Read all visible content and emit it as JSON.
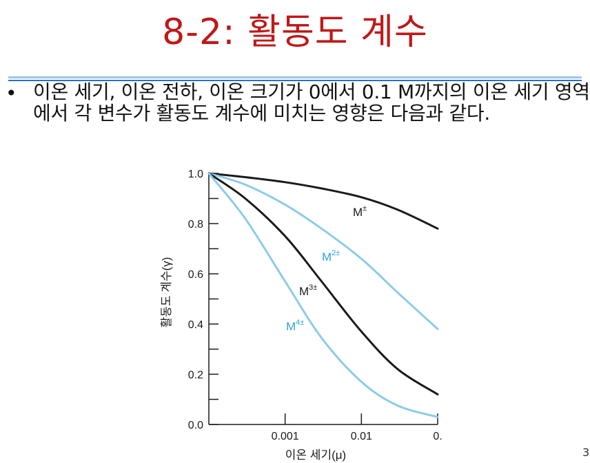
{
  "slide": {
    "title": "8-2: 활동도 계수",
    "bullet_text": "이온 세기, 이온 전하, 이온 크기가 0에서 0.1 M까지의 이온 세기 영역에서 각 변수가 활동도 계수에 미치는 영향은 다음과 같다.",
    "page_number": "3"
  },
  "colors": {
    "title": "#c01818",
    "rule_light": "#9fc3ea",
    "rule_dark": "#2a6fc6",
    "black_curve": "#1a1a1a",
    "blue_curve": "#8ccbea",
    "blue_label": "#2aa3df"
  },
  "chart_data": {
    "type": "line",
    "xlabel": "이온 세기(μ)",
    "ylabel": "활동도 계수(γ)",
    "x_scale": "log",
    "x_ticks": [
      {
        "value": 0.001,
        "label": "0.001"
      },
      {
        "value": 0.01,
        "label": "0.01"
      },
      {
        "value": 0.1,
        "label": "0."
      }
    ],
    "y_ticks": [
      {
        "value": 1.0,
        "label": "1.0"
      },
      {
        "value": 0.8,
        "label": "0.8"
      },
      {
        "value": 0.6,
        "label": "0.6"
      },
      {
        "value": 0.4,
        "label": "0.4"
      },
      {
        "value": 0.2,
        "label": "0.2"
      },
      {
        "value": 0.0,
        "label": "0.0"
      }
    ],
    "xlim": [
      0.0001,
      0.1
    ],
    "ylim": [
      0,
      1.0
    ],
    "series": [
      {
        "name": "M±",
        "label_base": "M",
        "label_sup": "±",
        "color": "#1a1a1a",
        "x": [
          0.0001,
          0.0003,
          0.001,
          0.003,
          0.01,
          0.03,
          0.1
        ],
        "y": [
          1.0,
          0.985,
          0.965,
          0.94,
          0.905,
          0.855,
          0.78
        ]
      },
      {
        "name": "M2±",
        "label_base": "M",
        "label_sup": "2±",
        "color": "#8ccbea",
        "x": [
          0.0001,
          0.0003,
          0.001,
          0.003,
          0.01,
          0.03,
          0.1
        ],
        "y": [
          1.0,
          0.955,
          0.875,
          0.78,
          0.66,
          0.525,
          0.38
        ]
      },
      {
        "name": "M3±",
        "label_base": "M",
        "label_sup": "3±",
        "color": "#1a1a1a",
        "x": [
          0.0001,
          0.0003,
          0.001,
          0.003,
          0.01,
          0.03,
          0.1
        ],
        "y": [
          1.0,
          0.9,
          0.75,
          0.57,
          0.37,
          0.22,
          0.12
        ]
      },
      {
        "name": "M4±",
        "label_base": "M",
        "label_sup": "4±",
        "color": "#8ccbea",
        "x": [
          0.0001,
          0.0003,
          0.001,
          0.003,
          0.01,
          0.03,
          0.1
        ],
        "y": [
          1.0,
          0.82,
          0.57,
          0.345,
          0.17,
          0.075,
          0.03
        ]
      }
    ],
    "grid": false
  }
}
